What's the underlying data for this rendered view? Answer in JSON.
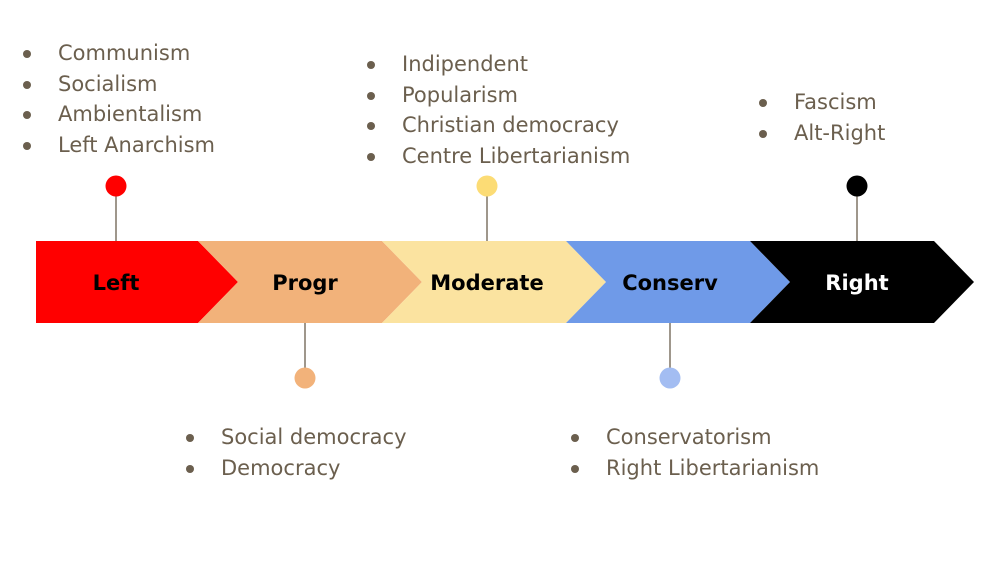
{
  "segments": [
    {
      "id": "left",
      "label": "Left",
      "fill": "#ff0000",
      "text_color": "#000000",
      "dot_color": "#ff0000",
      "items": [
        "Communism",
        "Socialism",
        "Ambientalism",
        "Left Anarchism"
      ]
    },
    {
      "id": "progr",
      "label": "Progr",
      "fill": "#f2b27a",
      "text_color": "#000000",
      "dot_color": "#f2b27a",
      "items": [
        "Social democracy",
        "Democracy"
      ]
    },
    {
      "id": "moderate",
      "label": "Moderate",
      "fill": "#fbe3a0",
      "text_color": "#000000",
      "dot_color": "#fcdc75",
      "items": [
        "Indipendent",
        "Popularism",
        "Christian democracy",
        "Centre Libertarianism"
      ]
    },
    {
      "id": "conserv",
      "label": "Conserv",
      "fill": "#6f9ae8",
      "text_color": "#000000",
      "dot_color": "#a3bdf2",
      "items": [
        "Conservatorism",
        "Right Libertarianism"
      ]
    },
    {
      "id": "right",
      "label": "Right",
      "fill": "#000000",
      "text_color": "#ffffff",
      "dot_color": "#000000",
      "items": [
        "Fascism",
        "Alt-Right"
      ]
    }
  ],
  "connector_color": "#6b5f4e",
  "bullet_color": "#6b5f4e"
}
